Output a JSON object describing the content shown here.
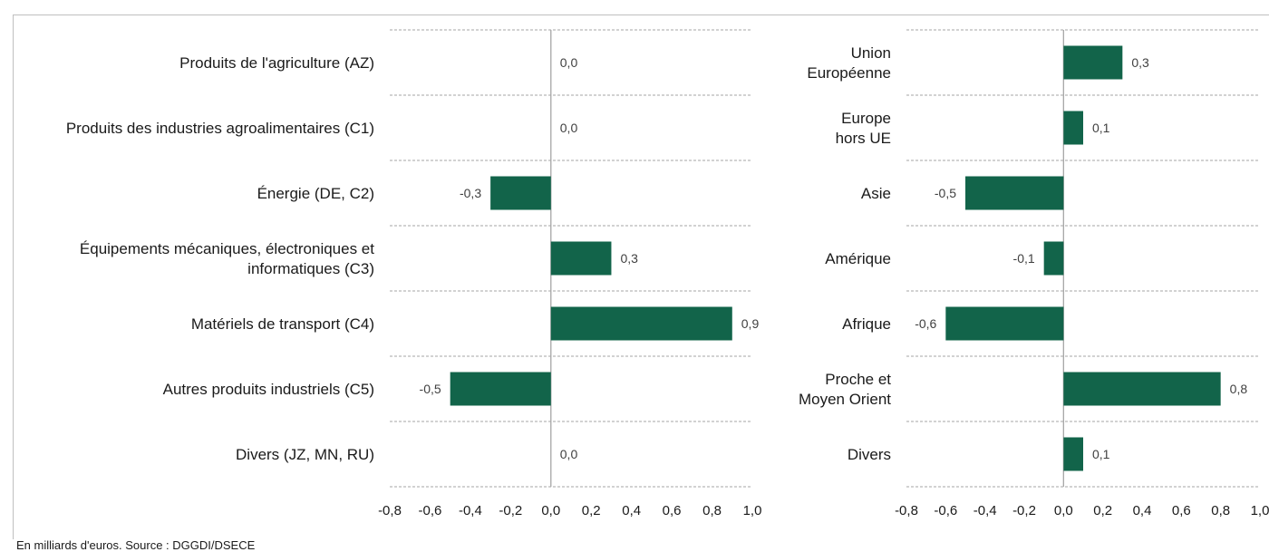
{
  "colors": {
    "bar": "#12644A",
    "grid": "#a6a6a6",
    "axis": "#a6a6a6"
  },
  "footnote": "En milliards d'euros. Source : DGGDI/DSECE",
  "chart_data": [
    {
      "type": "bar",
      "orientation": "horizontal",
      "categories": [
        [
          "Produits de l'agriculture (AZ)"
        ],
        [
          "Produits des industries agroalimentaires (C1)"
        ],
        [
          "Énergie (DE, C2)"
        ],
        [
          "Équipements mécaniques, électroniques et",
          "informatiques (C3)"
        ],
        [
          "Matériels de transport (C4)"
        ],
        [
          "Autres produits industriels (C5)"
        ],
        [
          "Divers (JZ, MN, RU)"
        ]
      ],
      "values": [
        0.0,
        0.0,
        -0.3,
        0.3,
        0.9,
        -0.5,
        0.0
      ],
      "value_labels": [
        "0,0",
        "0,0",
        "-0,3",
        "0,3",
        "0,9",
        "-0,5",
        "0,0"
      ],
      "xlim": [
        -0.8,
        1.0
      ],
      "xticks": [
        "-0,8",
        "-0,6",
        "-0,4",
        "-0,2",
        "0,0",
        "0,2",
        "0,4",
        "0,6",
        "0,8",
        "1,0"
      ],
      "grid": "horizontal dashed separators"
    },
    {
      "type": "bar",
      "orientation": "horizontal",
      "categories": [
        [
          "Union",
          "Européenne"
        ],
        [
          "Europe",
          "hors UE"
        ],
        [
          "Asie"
        ],
        [
          "Amérique"
        ],
        [
          "Afrique"
        ],
        [
          "Proche et",
          "Moyen Orient"
        ],
        [
          "Divers"
        ]
      ],
      "values": [
        0.3,
        0.1,
        -0.5,
        -0.1,
        -0.6,
        0.8,
        0.1
      ],
      "value_labels": [
        "0,3",
        "0,1",
        "-0,5",
        "-0,1",
        "-0,6",
        "0,8",
        "0,1"
      ],
      "xlim": [
        -0.8,
        1.0
      ],
      "xticks": [
        "-0,8",
        "-0,6",
        "-0,4",
        "-0,2",
        "0,0",
        "0,2",
        "0,4",
        "0,6",
        "0,8",
        "1,0"
      ],
      "grid": "horizontal dashed separators"
    }
  ]
}
